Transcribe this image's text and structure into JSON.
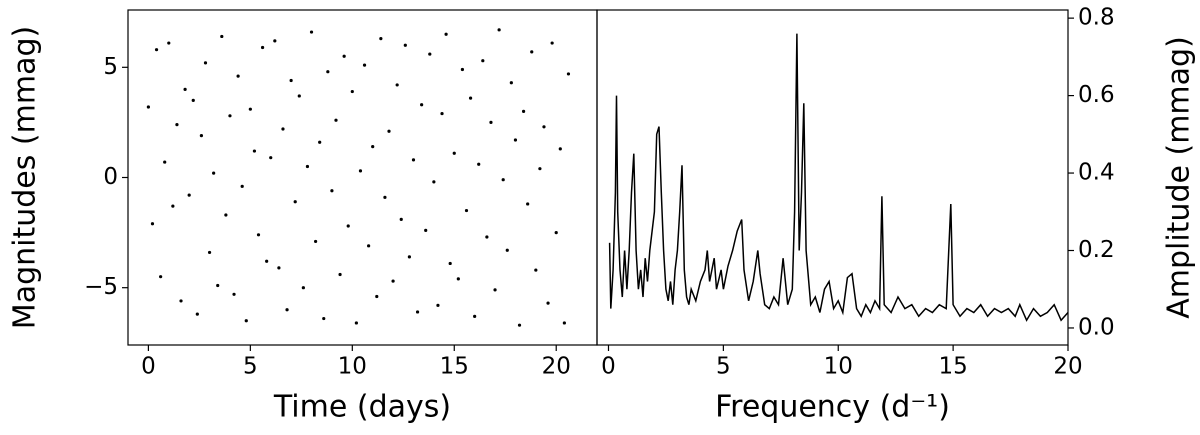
{
  "chart_data": [
    {
      "type": "scatter",
      "xlabel": "Time (days)",
      "ylabel": "Magnitudes (mmag)",
      "color": "#000000",
      "xlim": [
        -1,
        22
      ],
      "ylim": [
        -7.6,
        7.6
      ],
      "xticks": [
        0,
        5,
        10,
        15,
        20
      ],
      "yticks": [
        {
          "value": -5,
          "label": "−5"
        },
        0,
        5
      ],
      "x": [
        0.0,
        0.2,
        0.4,
        0.6,
        0.8,
        1.0,
        1.2,
        1.4,
        1.6,
        1.8,
        2.0,
        2.2,
        2.4,
        2.6,
        2.8,
        3.0,
        3.2,
        3.4,
        3.6,
        3.8,
        4.0,
        4.2,
        4.4,
        4.6,
        4.8,
        5.0,
        5.2,
        5.4,
        5.6,
        5.8,
        6.0,
        6.2,
        6.4,
        6.6,
        6.8,
        7.0,
        7.2,
        7.4,
        7.6,
        7.8,
        8.0,
        8.2,
        8.4,
        8.6,
        8.8,
        9.0,
        9.2,
        9.4,
        9.6,
        9.8,
        10.0,
        10.2,
        10.4,
        10.6,
        10.8,
        11.0,
        11.2,
        11.4,
        11.6,
        11.8,
        12.0,
        12.2,
        12.4,
        12.6,
        12.8,
        13.0,
        13.2,
        13.4,
        13.6,
        13.8,
        14.0,
        14.2,
        14.4,
        14.6,
        14.8,
        15.0,
        15.2,
        15.4,
        15.6,
        15.8,
        16.0,
        16.2,
        16.4,
        16.6,
        16.8,
        17.0,
        17.2,
        17.4,
        17.6,
        17.8,
        18.0,
        18.2,
        18.4,
        18.6,
        18.8,
        19.0,
        19.2,
        19.4,
        19.6,
        19.8,
        20.0,
        20.2,
        20.4,
        20.6
      ],
      "values": [
        3.2,
        -2.1,
        5.8,
        -4.5,
        0.7,
        6.1,
        -1.3,
        2.4,
        -5.6,
        4.0,
        -0.8,
        3.5,
        -6.2,
        1.9,
        5.2,
        -3.4,
        0.2,
        -4.9,
        6.4,
        -1.7,
        2.8,
        -5.3,
        4.6,
        -0.4,
        -6.5,
        3.1,
        1.2,
        -2.6,
        5.9,
        -3.8,
        0.9,
        6.2,
        -4.1,
        2.2,
        -6.0,
        4.4,
        -1.1,
        3.7,
        -5.0,
        0.5,
        6.6,
        -2.9,
        1.6,
        -6.4,
        4.8,
        -0.6,
        2.6,
        -4.4,
        5.5,
        -2.2,
        3.9,
        -6.6,
        0.3,
        5.1,
        -3.1,
        1.4,
        -5.4,
        6.3,
        -0.9,
        2.1,
        -4.7,
        4.2,
        -1.9,
        6.0,
        -3.6,
        0.8,
        -6.1,
        3.3,
        -2.4,
        5.6,
        -0.2,
        -5.8,
        2.9,
        6.5,
        -3.9,
        1.1,
        -4.6,
        4.9,
        -1.5,
        3.6,
        -6.3,
        0.6,
        5.3,
        -2.7,
        2.5,
        -5.1,
        6.7,
        -0.1,
        -3.3,
        4.3,
        1.7,
        -6.7,
        3.0,
        -1.2,
        5.7,
        -4.2,
        0.4,
        2.3,
        -5.7,
        6.1,
        -2.5,
        1.3,
        -6.6,
        4.7
      ]
    },
    {
      "type": "line",
      "xlabel": "Frequency (d⁻¹)",
      "ylabel": "Amplitude (mmag)",
      "color": "#000000",
      "xlim": [
        -0.5,
        20
      ],
      "ylim": [
        -0.044,
        0.821
      ],
      "xticks": [
        0,
        5,
        10,
        15,
        20
      ],
      "yticks": [
        {
          "value": 0,
          "label": "0.0"
        },
        0.2,
        0.4,
        0.6,
        0.8
      ],
      "yaxis_side": "right",
      "x": [
        0.05,
        0.1,
        0.2,
        0.3,
        0.35,
        0.4,
        0.5,
        0.6,
        0.7,
        0.8,
        0.9,
        1.0,
        1.1,
        1.2,
        1.3,
        1.4,
        1.5,
        1.6,
        1.7,
        1.8,
        1.9,
        2.0,
        2.1,
        2.2,
        2.3,
        2.4,
        2.5,
        2.6,
        2.7,
        2.8,
        2.9,
        3.0,
        3.1,
        3.2,
        3.3,
        3.4,
        3.5,
        3.6,
        3.8,
        4.0,
        4.2,
        4.3,
        4.4,
        4.6,
        4.7,
        4.9,
        5.0,
        5.2,
        5.4,
        5.6,
        5.8,
        5.9,
        6.1,
        6.3,
        6.5,
        6.6,
        6.8,
        7.0,
        7.2,
        7.4,
        7.6,
        7.8,
        8.0,
        8.1,
        8.2,
        8.3,
        8.4,
        8.5,
        8.6,
        8.8,
        9.0,
        9.2,
        9.4,
        9.6,
        9.8,
        10.0,
        10.2,
        10.4,
        10.6,
        10.8,
        11.0,
        11.2,
        11.4,
        11.6,
        11.8,
        11.9,
        12.0,
        12.3,
        12.6,
        12.9,
        13.2,
        13.5,
        13.8,
        14.1,
        14.4,
        14.7,
        14.9,
        15.0,
        15.3,
        15.6,
        15.9,
        16.2,
        16.5,
        16.8,
        17.1,
        17.4,
        17.7,
        17.9,
        18.2,
        18.5,
        18.8,
        19.1,
        19.4,
        19.7,
        20.0
      ],
      "values": [
        0.22,
        0.05,
        0.15,
        0.35,
        0.6,
        0.3,
        0.15,
        0.08,
        0.2,
        0.1,
        0.2,
        0.35,
        0.45,
        0.2,
        0.1,
        0.15,
        0.08,
        0.18,
        0.12,
        0.2,
        0.25,
        0.3,
        0.5,
        0.52,
        0.35,
        0.2,
        0.1,
        0.07,
        0.12,
        0.06,
        0.15,
        0.2,
        0.3,
        0.42,
        0.15,
        0.08,
        0.06,
        0.1,
        0.07,
        0.12,
        0.15,
        0.2,
        0.12,
        0.18,
        0.1,
        0.15,
        0.1,
        0.16,
        0.2,
        0.25,
        0.28,
        0.15,
        0.07,
        0.12,
        0.2,
        0.14,
        0.06,
        0.05,
        0.08,
        0.06,
        0.18,
        0.06,
        0.1,
        0.3,
        0.76,
        0.2,
        0.35,
        0.58,
        0.2,
        0.06,
        0.08,
        0.04,
        0.1,
        0.12,
        0.05,
        0.07,
        0.04,
        0.13,
        0.14,
        0.05,
        0.03,
        0.06,
        0.04,
        0.07,
        0.05,
        0.34,
        0.06,
        0.04,
        0.08,
        0.05,
        0.06,
        0.03,
        0.05,
        0.04,
        0.06,
        0.05,
        0.32,
        0.06,
        0.03,
        0.05,
        0.04,
        0.06,
        0.03,
        0.05,
        0.04,
        0.05,
        0.03,
        0.06,
        0.02,
        0.05,
        0.03,
        0.04,
        0.06,
        0.02,
        0.04
      ]
    }
  ]
}
